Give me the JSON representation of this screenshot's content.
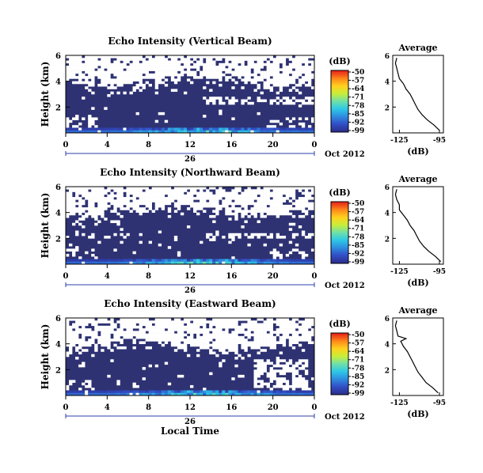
{
  "colors": {
    "background_echo": "#2e3273",
    "no_data": "#ffffff",
    "colormap": [
      "#2b2f8f",
      "#3250c8",
      "#2e8ee0",
      "#2ec9e6",
      "#6fe0a8",
      "#c8ee3a",
      "#ffd21e",
      "#ff8a1a",
      "#e8281a"
    ]
  },
  "chart_data": [
    {
      "type": "heatmap",
      "title": "Echo Intensity (Vertical Beam)",
      "ylabel": "Height (km)",
      "y_ticks": [
        "6",
        "4",
        "2"
      ],
      "x_ticks": [
        "0",
        "4",
        "8",
        "12",
        "16",
        "20",
        "0"
      ],
      "xlim": [
        0,
        24
      ],
      "ylim": [
        0,
        6
      ],
      "day_label": "26",
      "date_label": "Oct 2012",
      "colorbar": {
        "unit": "(dB)",
        "ticks": [
          "-50",
          "-57",
          "-64",
          "-71",
          "-78",
          "-85",
          "-92",
          "-99"
        ]
      },
      "profile": {
        "title": "Average",
        "xlabel": "(dB)",
        "x_ticks": [
          "-125",
          "-95"
        ],
        "y_ticks": [
          "6",
          "4",
          "2"
        ],
        "xlim": [
          -130,
          -92
        ],
        "ylim": [
          0,
          6
        ],
        "heights": [
          0.2,
          0.6,
          1.0,
          1.4,
          1.8,
          2.2,
          2.6,
          3.0,
          3.4,
          3.8,
          4.2,
          4.6,
          5.0,
          5.4,
          5.8
        ],
        "values": [
          -95,
          -99,
          -104,
          -108,
          -111,
          -113,
          -115,
          -117,
          -120,
          -122,
          -125,
          -126,
          -127,
          -128,
          -127
        ]
      }
    },
    {
      "type": "heatmap",
      "title": "Echo Intensity (Northward Beam)",
      "ylabel": "Height (km)",
      "y_ticks": [
        "6",
        "4",
        "2"
      ],
      "x_ticks": [
        "0",
        "4",
        "8",
        "12",
        "16",
        "20",
        "0"
      ],
      "xlim": [
        0,
        24
      ],
      "ylim": [
        0,
        6
      ],
      "day_label": "26",
      "date_label": "Oct 2012",
      "colorbar": {
        "unit": "(dB)",
        "ticks": [
          "-50",
          "-57",
          "-64",
          "-71",
          "-78",
          "-85",
          "-92",
          "-99"
        ]
      },
      "profile": {
        "title": "Average",
        "xlabel": "(dB)",
        "x_ticks": [
          "-125",
          "-95"
        ],
        "y_ticks": [
          "6",
          "4",
          "2"
        ],
        "xlim": [
          -130,
          -92
        ],
        "ylim": [
          0,
          6
        ],
        "heights": [
          0.2,
          0.6,
          1.0,
          1.4,
          1.8,
          2.2,
          2.6,
          3.0,
          3.4,
          3.8,
          4.2,
          4.6,
          5.0,
          5.4,
          5.8
        ],
        "values": [
          -94,
          -98,
          -103,
          -107,
          -110,
          -112,
          -114,
          -117,
          -119,
          -122,
          -125,
          -125,
          -127,
          -128,
          -127
        ]
      }
    },
    {
      "type": "heatmap",
      "title": "Echo Intensity (Eastward Beam)",
      "ylabel": "Height (km)",
      "xlabel": "Local Time",
      "y_ticks": [
        "6",
        "4",
        "2"
      ],
      "x_ticks": [
        "0",
        "4",
        "8",
        "12",
        "16",
        "20",
        "0"
      ],
      "xlim": [
        0,
        24
      ],
      "ylim": [
        0,
        6
      ],
      "day_label": "26",
      "date_label": "Oct 2012",
      "colorbar": {
        "unit": "(dB)",
        "ticks": [
          "-50",
          "-57",
          "-64",
          "-71",
          "-78",
          "-85",
          "-92",
          "-99"
        ]
      },
      "profile": {
        "title": "Average",
        "xlabel": "(dB)",
        "x_ticks": [
          "-125",
          "-95"
        ],
        "y_ticks": [
          "6",
          "4",
          "2"
        ],
        "xlim": [
          -130,
          -92
        ],
        "ylim": [
          0,
          6
        ],
        "heights": [
          0.2,
          0.6,
          1.0,
          1.4,
          1.8,
          2.2,
          2.6,
          3.0,
          3.4,
          3.8,
          4.2,
          4.4,
          4.6,
          5.0,
          5.4,
          5.8
        ],
        "values": [
          -96,
          -100,
          -105,
          -108,
          -111,
          -113,
          -115,
          -117,
          -119,
          -122,
          -124,
          -120,
          -126,
          -127,
          -128,
          -127
        ]
      }
    }
  ]
}
